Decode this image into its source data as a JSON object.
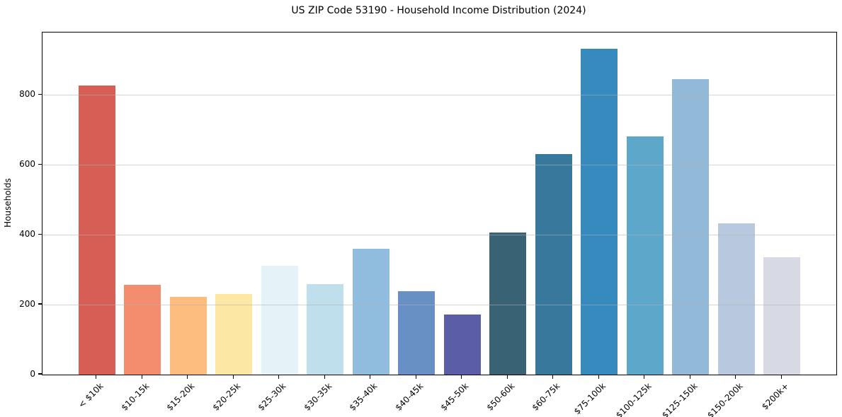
{
  "chart_data": {
    "type": "bar",
    "title": "US ZIP Code 53190 - Household Income Distribution (2024)",
    "xlabel": "",
    "ylabel": "Households",
    "categories": [
      "< $10k",
      "$10-15k",
      "$15-20k",
      "$20-25k",
      "$25-30k",
      "$30-35k",
      "$35-40k",
      "$40-45k",
      "$45-50k",
      "$50-60k",
      "$60-75k",
      "$75-100k",
      "$100-125k",
      "$125-150k",
      "$150-200k",
      "$200k+"
    ],
    "values": [
      828,
      256,
      222,
      231,
      312,
      259,
      360,
      239,
      171,
      406,
      631,
      933,
      681,
      846,
      433,
      335
    ],
    "bar_colors": [
      "#d65e55",
      "#f48d6d",
      "#fcbd7e",
      "#fde7a4",
      "#e5f2f8",
      "#bedfeb",
      "#90bcdd",
      "#6990c5",
      "#5b5ea7",
      "#3a6275",
      "#38789d",
      "#368abd",
      "#5ca7ca",
      "#93b9d8",
      "#b8c9df",
      "#d7d9e5"
    ],
    "yticks": [
      0,
      200,
      400,
      600,
      800
    ],
    "ylim": [
      0,
      979
    ],
    "grid": "horizontal",
    "legend": "none",
    "background": "#ffffff",
    "spine_color": "#000000",
    "grid_color": "#b0b0b0"
  }
}
